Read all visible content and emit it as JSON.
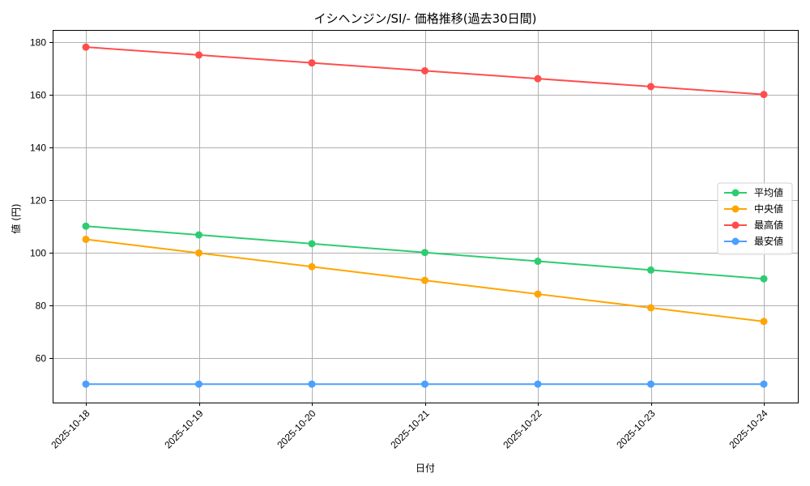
{
  "chart_data": {
    "type": "line",
    "title": "イシヘンジン/SI/- 価格推移(過去30日間)",
    "xlabel": "日付",
    "ylabel": "値 (円)",
    "categories": [
      "2025-10-18",
      "2025-10-19",
      "2025-10-20",
      "2025-10-21",
      "2025-10-22",
      "2025-10-23",
      "2025-10-24"
    ],
    "ylim": [
      43,
      184.5
    ],
    "yticks": [
      60,
      80,
      100,
      120,
      140,
      160,
      180
    ],
    "grid": true,
    "legend_position": "center right",
    "series": [
      {
        "name": "平均値",
        "color": "#2ecc71",
        "values": [
          110,
          106.67,
          103.33,
          100,
          96.67,
          93.33,
          90
        ]
      },
      {
        "name": "中央値",
        "color": "#ffa500",
        "values": [
          105,
          99.8,
          94.6,
          89.4,
          84.2,
          79,
          73.8
        ]
      },
      {
        "name": "最高値",
        "color": "#ff4d4d",
        "values": [
          178,
          175,
          172,
          169,
          166,
          163,
          160
        ]
      },
      {
        "name": "最安値",
        "color": "#4d9fff",
        "values": [
          50,
          50,
          50,
          50,
          50,
          50,
          50
        ]
      }
    ]
  }
}
